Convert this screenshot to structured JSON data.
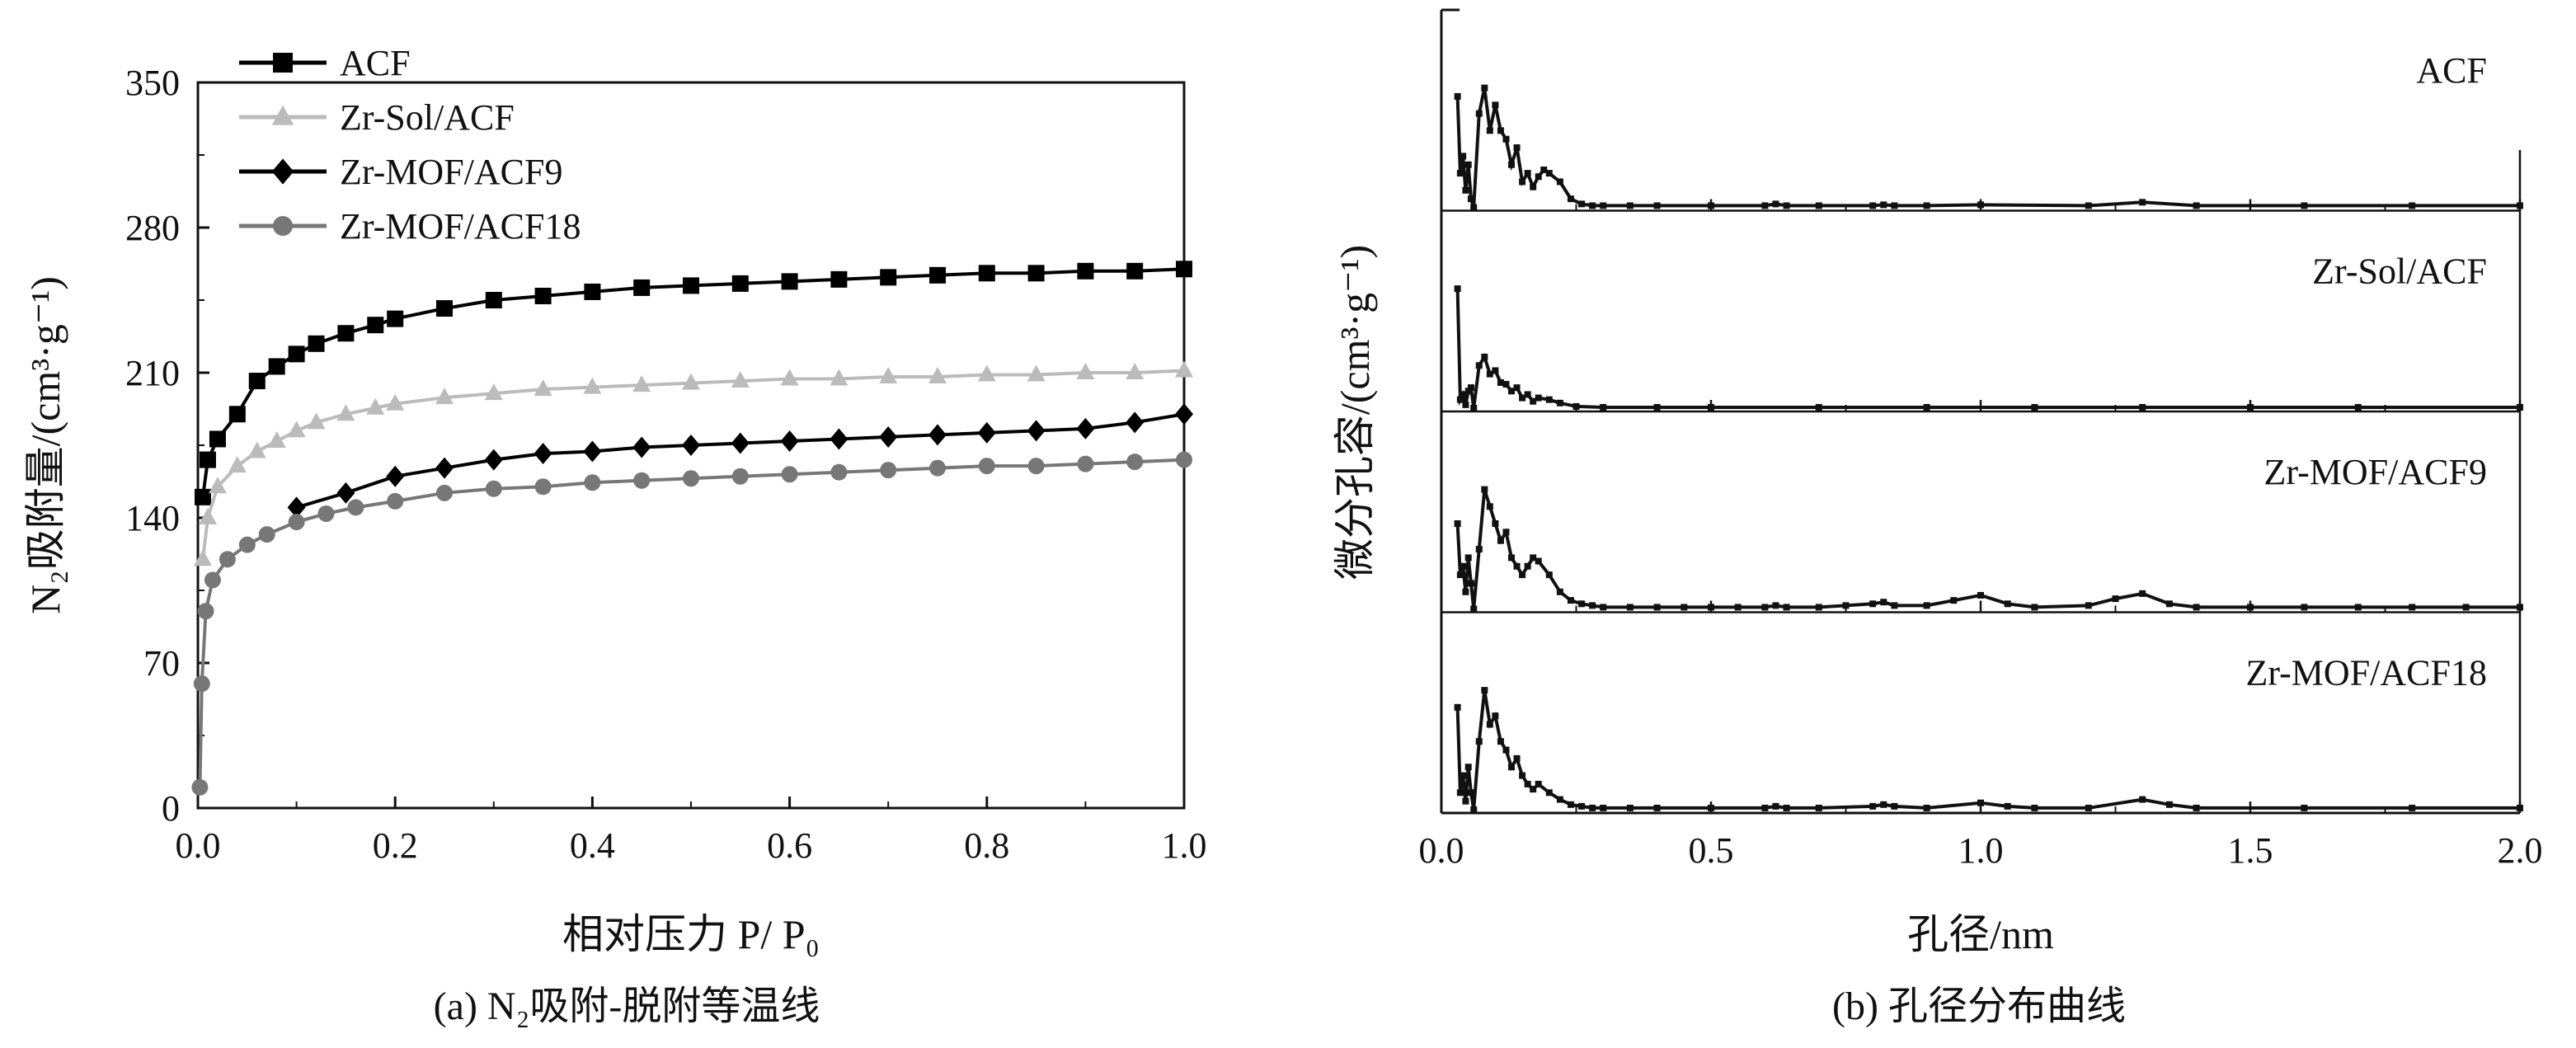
{
  "figure": {
    "caption_a": "(a) N₂吸附-脱附等温线",
    "caption_b": "(b) 孔径分布曲线"
  },
  "chart_data": [
    {
      "type": "line",
      "xlabel": "相对压力 P/ P₀",
      "ylabel": "N₂吸附量/(cm³·g⁻¹)",
      "xlim": [
        0.0,
        1.0
      ],
      "ylim": [
        0,
        350
      ],
      "x_ticks": [
        "0.0",
        "0.2",
        "0.4",
        "0.6",
        "0.8",
        "1.0"
      ],
      "y_ticks": [
        "0",
        "70",
        "140",
        "210",
        "280",
        "350"
      ],
      "legend_position": "top-left",
      "series": [
        {
          "name": "ACF",
          "color": "#000000",
          "marker": "square",
          "x": [
            0.005,
            0.01,
            0.02,
            0.04,
            0.06,
            0.08,
            0.1,
            0.12,
            0.15,
            0.18,
            0.2,
            0.25,
            0.3,
            0.35,
            0.4,
            0.45,
            0.5,
            0.55,
            0.6,
            0.65,
            0.7,
            0.75,
            0.8,
            0.85,
            0.9,
            0.95,
            1.0
          ],
          "y": [
            150,
            168,
            178,
            190,
            206,
            213,
            219,
            224,
            229,
            233,
            236,
            241,
            245,
            247,
            249,
            251,
            252,
            253,
            254,
            255,
            256,
            257,
            258,
            258,
            259,
            259,
            260
          ]
        },
        {
          "name": "Zr-Sol/ACF",
          "color": "#bbbbbb",
          "marker": "triangle",
          "x": [
            0.005,
            0.01,
            0.02,
            0.04,
            0.06,
            0.08,
            0.1,
            0.12,
            0.15,
            0.18,
            0.2,
            0.25,
            0.3,
            0.35,
            0.4,
            0.45,
            0.5,
            0.55,
            0.6,
            0.65,
            0.7,
            0.75,
            0.8,
            0.85,
            0.9,
            0.95,
            1.0
          ],
          "y": [
            120,
            140,
            155,
            165,
            172,
            177,
            182,
            186,
            190,
            193,
            195,
            198,
            200,
            202,
            203,
            204,
            205,
            206,
            207,
            207,
            208,
            208,
            209,
            209,
            210,
            210,
            211
          ]
        },
        {
          "name": "Zr-MOF/ACF9",
          "color": "#000000",
          "marker": "diamond",
          "x": [
            0.1,
            0.15,
            0.2,
            0.25,
            0.3,
            0.35,
            0.4,
            0.45,
            0.5,
            0.55,
            0.6,
            0.65,
            0.7,
            0.75,
            0.8,
            0.85,
            0.9,
            0.95,
            1.0
          ],
          "y": [
            145,
            152,
            160,
            164,
            168,
            171,
            172,
            174,
            175,
            176,
            177,
            178,
            179,
            180,
            181,
            182,
            183,
            186,
            190
          ]
        },
        {
          "name": "Zr-MOF/ACF18",
          "color": "#777777",
          "marker": "circle",
          "x": [
            0.002,
            0.004,
            0.008,
            0.015,
            0.03,
            0.05,
            0.07,
            0.1,
            0.13,
            0.16,
            0.2,
            0.25,
            0.3,
            0.35,
            0.4,
            0.45,
            0.5,
            0.55,
            0.6,
            0.65,
            0.7,
            0.75,
            0.8,
            0.85,
            0.9,
            0.95,
            1.0
          ],
          "y": [
            10,
            60,
            95,
            110,
            120,
            127,
            132,
            138,
            142,
            145,
            148,
            152,
            154,
            155,
            157,
            158,
            159,
            160,
            161,
            162,
            163,
            164,
            165,
            165,
            166,
            167,
            168
          ]
        }
      ]
    },
    {
      "type": "line",
      "xlabel": "孔径/nm",
      "ylabel": "微分孔容/(cm³·g⁻¹)",
      "xlim": [
        0.0,
        2.0
      ],
      "x_ticks": [
        "0.0",
        "0.5",
        "1.0",
        "1.5",
        "2.0"
      ],
      "stacked_panels": 4,
      "y_scale": "relative (no numeric ticks)",
      "series": [
        {
          "name": "ACF",
          "color": "#111111",
          "marker": "square",
          "x": [
            0.03,
            0.035,
            0.04,
            0.045,
            0.05,
            0.055,
            0.06,
            0.07,
            0.08,
            0.09,
            0.1,
            0.11,
            0.12,
            0.13,
            0.14,
            0.15,
            0.16,
            0.17,
            0.18,
            0.19,
            0.2,
            0.22,
            0.24,
            0.26,
            0.28,
            0.3,
            0.35,
            0.4,
            0.5,
            0.6,
            0.62,
            0.64,
            0.7,
            0.8,
            0.82,
            0.84,
            0.9,
            1.0,
            1.2,
            1.3,
            1.4,
            1.6,
            1.8,
            2.0
          ],
          "y": [
            0.65,
            0.2,
            0.3,
            0.1,
            0.25,
            0.05,
            0.0,
            0.55,
            0.7,
            0.45,
            0.6,
            0.45,
            0.4,
            0.25,
            0.35,
            0.15,
            0.2,
            0.12,
            0.18,
            0.22,
            0.2,
            0.15,
            0.05,
            0.02,
            0.01,
            0.01,
            0.01,
            0.01,
            0.01,
            0.01,
            0.02,
            0.01,
            0.01,
            0.01,
            0.015,
            0.01,
            0.01,
            0.015,
            0.01,
            0.03,
            0.01,
            0.01,
            0.01,
            0.01
          ]
        },
        {
          "name": "Zr-Sol/ACF",
          "color": "#111111",
          "marker": "square",
          "x": [
            0.03,
            0.035,
            0.04,
            0.045,
            0.05,
            0.055,
            0.06,
            0.07,
            0.08,
            0.09,
            0.1,
            0.11,
            0.12,
            0.13,
            0.14,
            0.15,
            0.16,
            0.17,
            0.18,
            0.2,
            0.22,
            0.25,
            0.3,
            0.4,
            0.5,
            0.7,
            0.9,
            1.1,
            1.3,
            1.5,
            1.7,
            2.0
          ],
          "y": [
            0.7,
            0.05,
            0.08,
            0.02,
            0.1,
            0.12,
            0.0,
            0.25,
            0.3,
            0.2,
            0.22,
            0.15,
            0.14,
            0.1,
            0.12,
            0.06,
            0.08,
            0.04,
            0.06,
            0.05,
            0.03,
            0.01,
            0.005,
            0.005,
            0.005,
            0.005,
            0.005,
            0.005,
            0.005,
            0.005,
            0.005,
            0.005
          ]
        },
        {
          "name": "Zr-MOF/ACF9",
          "color": "#111111",
          "marker": "square",
          "x": [
            0.03,
            0.035,
            0.04,
            0.045,
            0.05,
            0.055,
            0.06,
            0.07,
            0.08,
            0.09,
            0.1,
            0.11,
            0.12,
            0.13,
            0.14,
            0.15,
            0.16,
            0.17,
            0.18,
            0.2,
            0.22,
            0.24,
            0.26,
            0.28,
            0.3,
            0.35,
            0.4,
            0.45,
            0.5,
            0.55,
            0.6,
            0.62,
            0.64,
            0.7,
            0.75,
            0.8,
            0.82,
            0.84,
            0.9,
            0.95,
            1.0,
            1.05,
            1.1,
            1.2,
            1.25,
            1.3,
            1.35,
            1.4,
            1.5,
            1.6,
            1.7,
            1.8,
            1.9,
            2.0
          ],
          "y": [
            0.5,
            0.2,
            0.25,
            0.1,
            0.3,
            0.15,
            0.0,
            0.35,
            0.7,
            0.6,
            0.5,
            0.4,
            0.45,
            0.3,
            0.25,
            0.2,
            0.25,
            0.3,
            0.28,
            0.2,
            0.1,
            0.05,
            0.03,
            0.02,
            0.01,
            0.01,
            0.01,
            0.01,
            0.01,
            0.01,
            0.01,
            0.02,
            0.01,
            0.01,
            0.02,
            0.03,
            0.04,
            0.02,
            0.02,
            0.05,
            0.08,
            0.03,
            0.01,
            0.02,
            0.06,
            0.09,
            0.03,
            0.01,
            0.01,
            0.01,
            0.01,
            0.01,
            0.01,
            0.01
          ]
        },
        {
          "name": "Zr-MOF/ACF18",
          "color": "#111111",
          "marker": "square",
          "x": [
            0.03,
            0.035,
            0.04,
            0.045,
            0.05,
            0.055,
            0.06,
            0.07,
            0.08,
            0.09,
            0.1,
            0.11,
            0.12,
            0.13,
            0.14,
            0.15,
            0.16,
            0.17,
            0.18,
            0.2,
            0.22,
            0.24,
            0.26,
            0.28,
            0.3,
            0.35,
            0.4,
            0.5,
            0.6,
            0.62,
            0.64,
            0.7,
            0.8,
            0.82,
            0.84,
            0.9,
            1.0,
            1.05,
            1.1,
            1.2,
            1.3,
            1.35,
            1.4,
            1.6,
            1.8,
            2.0
          ],
          "y": [
            0.6,
            0.1,
            0.2,
            0.05,
            0.25,
            0.1,
            0.0,
            0.4,
            0.7,
            0.5,
            0.55,
            0.4,
            0.35,
            0.25,
            0.3,
            0.2,
            0.15,
            0.12,
            0.15,
            0.1,
            0.06,
            0.03,
            0.02,
            0.01,
            0.01,
            0.01,
            0.01,
            0.01,
            0.01,
            0.02,
            0.01,
            0.01,
            0.02,
            0.03,
            0.02,
            0.01,
            0.04,
            0.02,
            0.01,
            0.01,
            0.06,
            0.03,
            0.01,
            0.01,
            0.01,
            0.01
          ]
        }
      ]
    }
  ]
}
